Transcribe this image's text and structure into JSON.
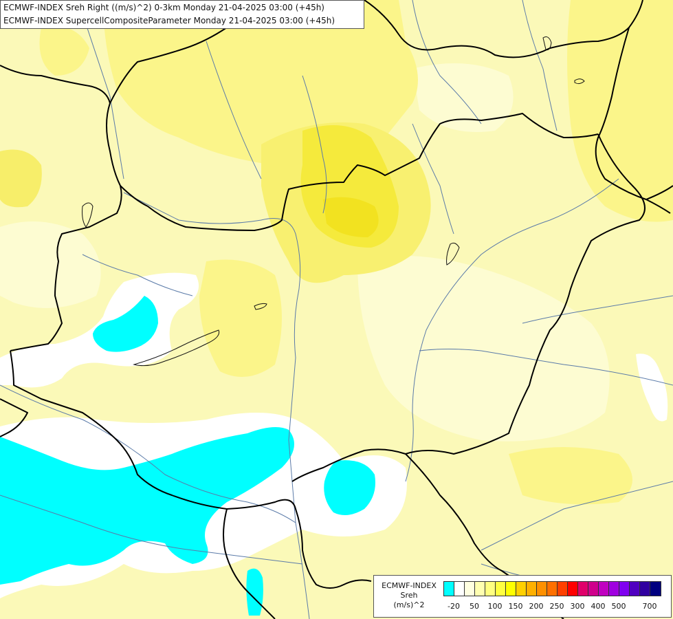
{
  "title": {
    "line1": "ECMWF-INDEX Sreh Right ((m/s)^2) 0-3km Monday 21-04-2025 03:00 (+45h)",
    "line2": "ECMWF-INDEX SupercellCompositeParameter Monday 21-04-2025 03:00 (+45h)"
  },
  "legend": {
    "line1": "ECMWF-INDEX",
    "line2": "Sreh",
    "line3": "(m/s)^2",
    "colors": [
      "#00ffff",
      "#ffffff",
      "#ffffe0",
      "#ffffb0",
      "#ffff80",
      "#ffff40",
      "#ffff00",
      "#ffd000",
      "#ffb000",
      "#ff9000",
      "#ff7000",
      "#ff4000",
      "#ff0000",
      "#e0006a",
      "#d0008c",
      "#c000c0",
      "#a000e0",
      "#8000f0",
      "#5000c0",
      "#3000a0",
      "#000080"
    ],
    "ticks": [
      "-20",
      "50",
      "100",
      "150",
      "200",
      "250",
      "300",
      "400",
      "500",
      "700"
    ]
  },
  "colors": {
    "background": "#fbf9b8",
    "border": "#000000",
    "river": "#5a7aa8"
  }
}
